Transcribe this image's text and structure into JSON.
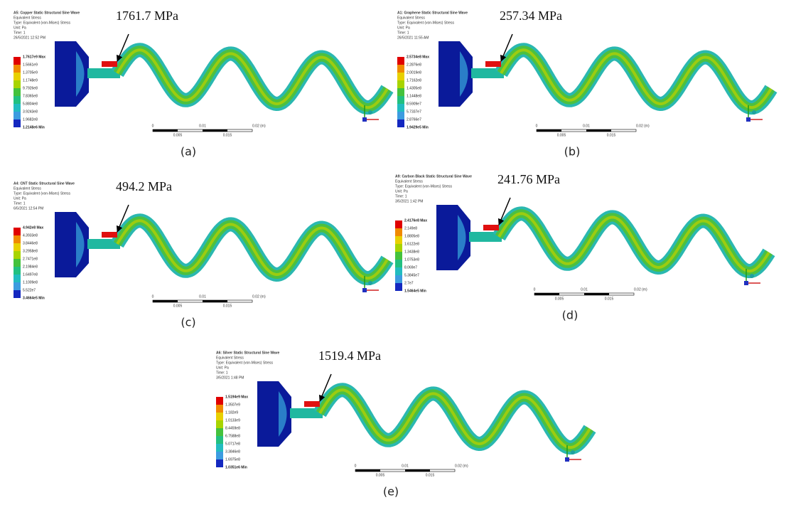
{
  "panels": [
    {
      "header": [
        "A5: Copper Static Structural Sine Wave",
        "Equivalent Stress",
        "Type: Equivalent (von-Mises) Stress",
        "Unit: Pa",
        "Time: 1",
        "26/5/2021 12:52 PM"
      ],
      "legend": [
        "1.7617e9 Max",
        "1.5661e9",
        "1.3705e9",
        "1.1748e9",
        "9.7926e8",
        "7.8365e8",
        "5.8804e8",
        "3.9243e8",
        "1.9682e8",
        "1.2148e6 Min"
      ],
      "annotation": "1761.7 MPa",
      "scale_top": [
        "0",
        "0.01",
        "0.02 (m)"
      ],
      "scale_bottom": [
        "0.005",
        "0.015"
      ],
      "caption": "(a)"
    },
    {
      "header": [
        "A1: Graphene Static Structural Sine Wave",
        "Equivalent Stress",
        "Type: Equivalent (von-Mises) Stress",
        "Unit: Pa",
        "Time: 1",
        "26/5/2021 11:55 AM"
      ],
      "legend": [
        "2.5734e8 Max",
        "2.2876e8",
        "2.0019e8",
        "1.7162e8",
        "1.4305e8",
        "1.1448e8",
        "8.5909e7",
        "5.7337e7",
        "2.8766e7",
        "1.9429e5 Min"
      ],
      "annotation": "257.34 MPa",
      "scale_top": [
        "0",
        "0.01",
        "0.02 (m)"
      ],
      "scale_bottom": [
        "0.005",
        "0.015"
      ],
      "caption": "(b)"
    },
    {
      "header": [
        "A4: CNT Static Structural Sine Wave",
        "Equivalent Stress",
        "Type: Equivalent (von-Mises) Stress",
        "Unit: Pa",
        "Time: 1",
        "6/5/2021 12:54 PM"
      ],
      "legend": [
        "4.942e8 Max",
        "4.3933e8",
        "3.8446e8",
        "3.2958e8",
        "2.7471e8",
        "2.1984e8",
        "1.6497e8",
        "1.1009e8",
        "5.522e7",
        "3.4664e5 Min"
      ],
      "annotation": "494.2 MPa",
      "scale_top": [
        "0",
        "0.01",
        "0.02 (m)"
      ],
      "scale_bottom": [
        "0.005",
        "0.015"
      ],
      "caption": "(c)"
    },
    {
      "header": [
        "A9: Carbon Black Static Structural Sine Wave",
        "Equivalent Stress",
        "Type: Equivalent (von-Mises) Stress",
        "Unit: Pa",
        "Time: 1",
        "3/5/2021 1:42 PM"
      ],
      "legend": [
        "2.4176e8 Max",
        "2.149e8",
        "1.8805e8",
        "1.6122e8",
        "1.3438e8",
        "1.0753e8",
        "8.069e7",
        "5.3845e7",
        "2.7e7",
        "1.5464e5 Min"
      ],
      "annotation": "241.76 MPa",
      "scale_top": [
        "0",
        "0.01",
        "0.02 (m)"
      ],
      "scale_bottom": [
        "0.005",
        "0.015"
      ],
      "caption": "(d)"
    },
    {
      "header": [
        "A6: Silver Static Structural Sine Wave",
        "Equivalent Stress",
        "Type: Equivalent (von-Mises) Stress",
        "Unit: Pa",
        "Time: 1",
        "3/5/2021 1:48 PM"
      ],
      "legend": [
        "1.5194e9 Max",
        "1.3507e9",
        "1.182e9",
        "1.0133e9",
        "8.4459e8",
        "6.7588e8",
        "5.0717e8",
        "3.3846e8",
        "1.6975e8",
        "1.0351e6 Min"
      ],
      "annotation": "1519.4 MPa",
      "scale_top": [
        "0",
        "0.01",
        "0.02 (m)"
      ],
      "scale_bottom": [
        "0.005",
        "0.015"
      ],
      "caption": "(e)"
    }
  ]
}
